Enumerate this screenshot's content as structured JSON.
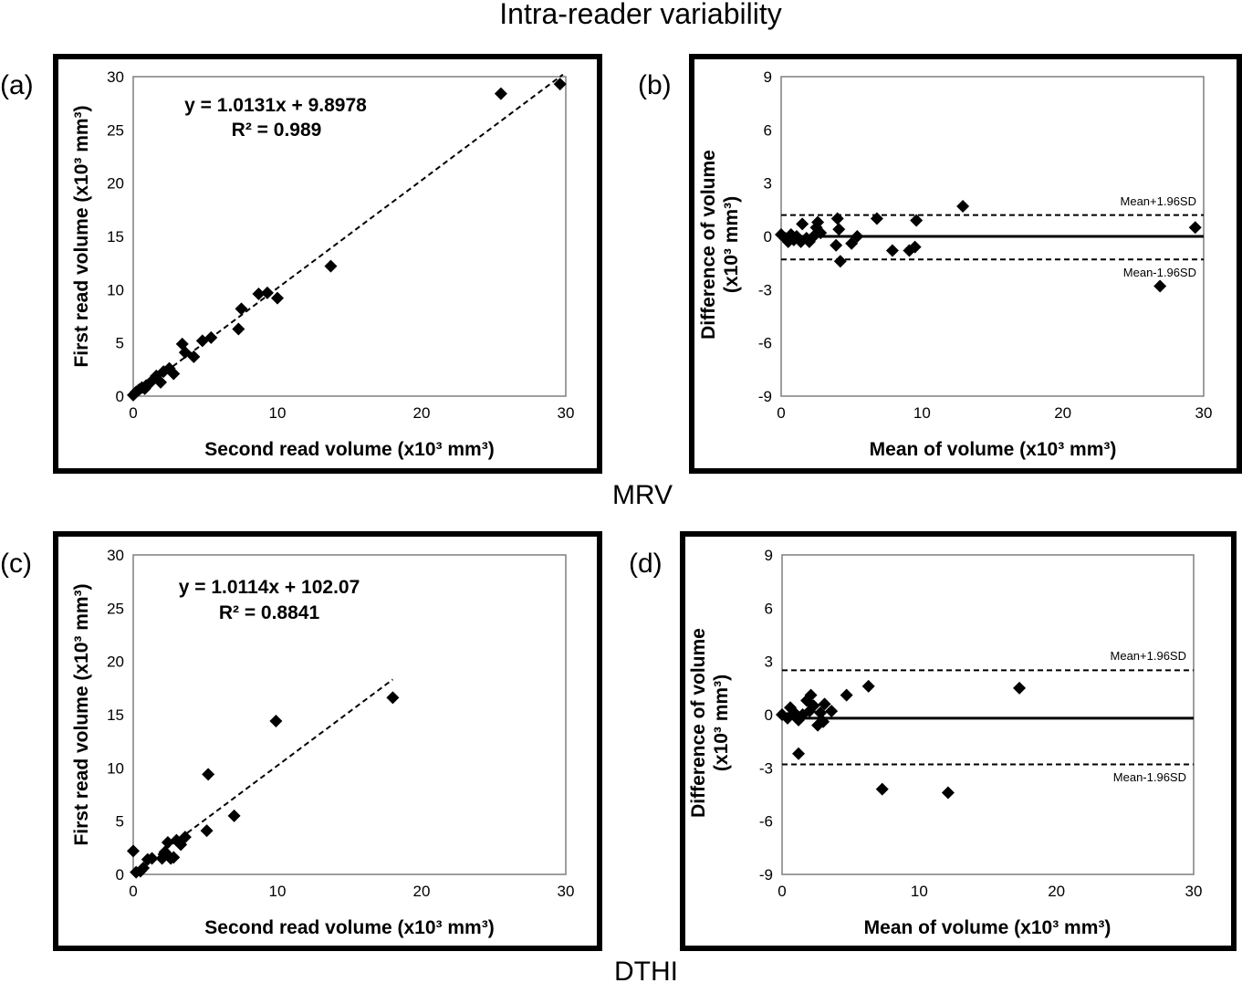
{
  "figure": {
    "title": "Intra-reader variability",
    "section_labels": [
      "MRV",
      "DTHI"
    ]
  },
  "chart_data": [
    {
      "id": "a",
      "panel_label": "(a)",
      "type": "scatter",
      "xlabel": "Second read volume (x10³ mm³)",
      "ylabel": "First read volume (x10³ mm³)",
      "xlim": [
        0,
        30
      ],
      "ylim": [
        0,
        30
      ],
      "xticks": [
        0,
        10,
        20,
        30
      ],
      "yticks": [
        0,
        5,
        10,
        15,
        20,
        25,
        30
      ],
      "equation": "y = 1.0131x + 9.8978",
      "r2": "R² = 0.989",
      "trendline": {
        "slope": 1.0131,
        "intercept": 0.0099,
        "x_range": [
          0.2,
          29.8
        ]
      },
      "points": [
        [
          0.0,
          0.1
        ],
        [
          0.2,
          0.4
        ],
        [
          0.4,
          0.6
        ],
        [
          0.6,
          0.8
        ],
        [
          0.8,
          0.7
        ],
        [
          0.9,
          1.0
        ],
        [
          1.2,
          1.3
        ],
        [
          1.6,
          1.9
        ],
        [
          1.9,
          1.3
        ],
        [
          2.1,
          2.3
        ],
        [
          2.5,
          2.6
        ],
        [
          2.8,
          2.1
        ],
        [
          3.4,
          4.9
        ],
        [
          3.6,
          4.1
        ],
        [
          4.2,
          3.7
        ],
        [
          4.8,
          5.2
        ],
        [
          5.4,
          5.5
        ],
        [
          7.3,
          6.3
        ],
        [
          7.5,
          8.2
        ],
        [
          8.7,
          9.6
        ],
        [
          9.3,
          9.7
        ],
        [
          10.0,
          9.2
        ],
        [
          13.7,
          12.2
        ],
        [
          25.5,
          28.4
        ],
        [
          29.6,
          29.3
        ]
      ]
    },
    {
      "id": "b",
      "panel_label": "(b)",
      "type": "scatter",
      "xlabel": "Mean of volume (x10³ mm³)",
      "ylabel_lines": [
        "Difference of volume",
        "(x10³ mm³)"
      ],
      "xlim": [
        0,
        30
      ],
      "ylim": [
        -9,
        9
      ],
      "xticks": [
        0,
        10,
        20,
        30
      ],
      "yticks": [
        -9,
        -6,
        -3,
        0,
        3,
        6,
        9
      ],
      "mean_line": 0.0,
      "upper_limit": {
        "value": 1.2,
        "label": "Mean+1.96SD"
      },
      "lower_limit": {
        "value": -1.3,
        "label": "Mean-1.96SD"
      },
      "points": [
        [
          0.0,
          0.1
        ],
        [
          0.3,
          -0.1
        ],
        [
          0.5,
          -0.3
        ],
        [
          0.7,
          0.1
        ],
        [
          0.9,
          -0.2
        ],
        [
          1.1,
          0.0
        ],
        [
          1.4,
          -0.3
        ],
        [
          1.5,
          0.7
        ],
        [
          1.8,
          -0.1
        ],
        [
          2.0,
          -0.3
        ],
        [
          2.3,
          0.0
        ],
        [
          2.5,
          0.5
        ],
        [
          2.6,
          0.8
        ],
        [
          2.8,
          0.2
        ],
        [
          3.9,
          -0.5
        ],
        [
          4.0,
          1.0
        ],
        [
          4.1,
          0.4
        ],
        [
          4.2,
          -1.4
        ],
        [
          5.0,
          -0.4
        ],
        [
          5.4,
          0.0
        ],
        [
          6.8,
          1.0
        ],
        [
          7.9,
          -0.8
        ],
        [
          9.1,
          -0.8
        ],
        [
          9.5,
          -0.6
        ],
        [
          9.6,
          0.9
        ],
        [
          12.9,
          1.7
        ],
        [
          26.9,
          -2.8
        ],
        [
          29.4,
          0.5
        ]
      ]
    },
    {
      "id": "c",
      "panel_label": "(c)",
      "type": "scatter",
      "xlabel": "Second read volume (x10³ mm³)",
      "ylabel": "First read volume (x10³ mm³)",
      "xlim": [
        0,
        30
      ],
      "ylim": [
        0,
        30
      ],
      "xticks": [
        0,
        10,
        20,
        30
      ],
      "yticks": [
        0,
        5,
        10,
        15,
        20,
        25,
        30
      ],
      "equation": "y = 1.0114x + 102.07",
      "r2": "R² = 0.8841",
      "trendline": {
        "slope": 1.0114,
        "intercept": 0.10207,
        "x_range": [
          0.2,
          18.0
        ]
      },
      "points": [
        [
          0.0,
          2.2
        ],
        [
          0.2,
          0.2
        ],
        [
          0.5,
          0.3
        ],
        [
          0.7,
          0.6
        ],
        [
          1.0,
          1.4
        ],
        [
          1.3,
          1.5
        ],
        [
          2.0,
          1.5
        ],
        [
          2.2,
          2.1
        ],
        [
          2.4,
          3.0
        ],
        [
          2.6,
          1.5
        ],
        [
          2.8,
          1.6
        ],
        [
          3.0,
          3.2
        ],
        [
          3.3,
          2.8
        ],
        [
          3.6,
          3.5
        ],
        [
          5.1,
          4.1
        ],
        [
          5.2,
          9.4
        ],
        [
          7.0,
          5.5
        ],
        [
          9.9,
          14.4
        ],
        [
          18.0,
          16.6
        ]
      ]
    },
    {
      "id": "d",
      "panel_label": "(d)",
      "type": "scatter",
      "xlabel": "Mean of volume (x10³ mm³)",
      "ylabel_lines": [
        "Difference of volume",
        "(x10³ mm³)"
      ],
      "xlim": [
        0,
        30
      ],
      "ylim": [
        -9,
        9
      ],
      "xticks": [
        0,
        10,
        20,
        30
      ],
      "yticks": [
        -9,
        -6,
        -3,
        0,
        3,
        6,
        9
      ],
      "mean_line": -0.2,
      "upper_limit": {
        "value": 2.5,
        "label": "Mean+1.96SD"
      },
      "lower_limit": {
        "value": -2.8,
        "label": "Mean-1.96SD"
      },
      "points": [
        [
          0.0,
          0.0
        ],
        [
          0.4,
          -0.2
        ],
        [
          0.6,
          0.4
        ],
        [
          0.9,
          0.1
        ],
        [
          1.2,
          -0.3
        ],
        [
          1.2,
          -2.2
        ],
        [
          1.5,
          0.0
        ],
        [
          1.8,
          0.8
        ],
        [
          2.0,
          0.2
        ],
        [
          2.1,
          1.1
        ],
        [
          2.3,
          0.5
        ],
        [
          2.6,
          -0.6
        ],
        [
          2.8,
          0.1
        ],
        [
          3.0,
          -0.4
        ],
        [
          3.1,
          0.6
        ],
        [
          3.6,
          0.2
        ],
        [
          4.7,
          1.1
        ],
        [
          6.3,
          1.6
        ],
        [
          7.3,
          -4.2
        ],
        [
          12.1,
          -4.4
        ],
        [
          17.3,
          1.5
        ]
      ]
    }
  ]
}
